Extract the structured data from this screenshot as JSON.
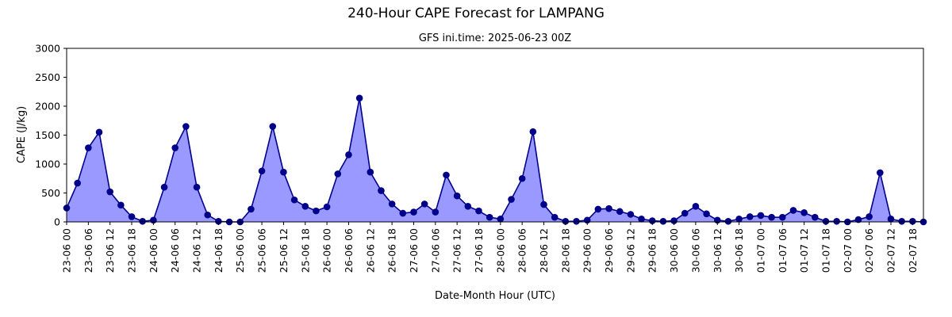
{
  "chart_data": {
    "type": "area",
    "title": "240-Hour CAPE Forecast for LAMPANG",
    "subtitle": "GFS ini.time: 2025-06-23 00Z",
    "xlabel": "Date-Month Hour (UTC)",
    "ylabel": "CAPE (J/kg)",
    "ylim": [
      0,
      3000
    ],
    "yticks": [
      0,
      500,
      1000,
      1500,
      2000,
      2500,
      3000
    ],
    "grid": false,
    "x_step_hours": 3,
    "x_tick_labels": [
      "23-06 00",
      "23-06 06",
      "23-06 12",
      "23-06 18",
      "24-06 00",
      "24-06 06",
      "24-06 12",
      "24-06 18",
      "25-06 00",
      "25-06 06",
      "25-06 12",
      "25-06 18",
      "26-06 00",
      "26-06 06",
      "26-06 12",
      "26-06 18",
      "27-06 00",
      "27-06 06",
      "27-06 12",
      "27-06 18",
      "28-06 00",
      "28-06 06",
      "28-06 12",
      "28-06 18",
      "29-06 00",
      "29-06 06",
      "29-06 12",
      "29-06 18",
      "30-06 00",
      "30-06 06",
      "30-06 12",
      "30-06 18",
      "01-07 00",
      "01-07 06",
      "01-07 12",
      "01-07 18",
      "02-07 00",
      "02-07 06",
      "02-07 12",
      "02-07 18"
    ],
    "values": [
      240,
      670,
      1280,
      1550,
      520,
      290,
      90,
      10,
      30,
      600,
      1280,
      1650,
      600,
      120,
      10,
      0,
      0,
      220,
      880,
      1650,
      860,
      380,
      270,
      190,
      260,
      830,
      1160,
      2140,
      860,
      540,
      310,
      150,
      170,
      310,
      170,
      810,
      450,
      270,
      190,
      80,
      50,
      390,
      750,
      1560,
      300,
      80,
      10,
      10,
      30,
      220,
      230,
      180,
      130,
      50,
      20,
      10,
      20,
      150,
      270,
      140,
      30,
      10,
      50,
      90,
      110,
      80,
      80,
      200,
      160,
      80,
      10,
      10,
      0,
      40,
      90,
      850,
      50,
      10,
      10,
      0
    ],
    "colors": {
      "fill": "#9999ff",
      "line": "#00008b",
      "marker": "#00008b"
    }
  }
}
